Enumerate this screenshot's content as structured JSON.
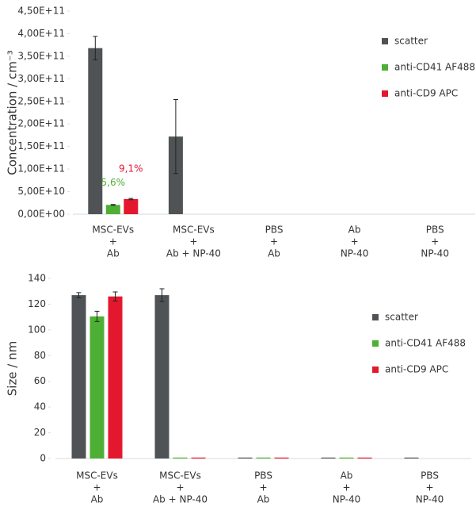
{
  "chart_data": [
    {
      "type": "bar",
      "y_label": "Concentration / cm⁻³",
      "categories": [
        [
          "MSC-EVs",
          "+",
          "Ab"
        ],
        [
          "MSC-EVs",
          "+",
          "Ab + NP-40"
        ],
        [
          "PBS",
          "+",
          "Ab"
        ],
        [
          "Ab",
          "+",
          "NP-40"
        ],
        [
          "PBS",
          "+",
          "NP-40"
        ]
      ],
      "series": [
        {
          "name": "scatter",
          "color": "#505356",
          "values": [
            368000000000,
            172000000000,
            null,
            null,
            null
          ],
          "errors": [
            26000000000,
            82000000000,
            null,
            null,
            null
          ]
        },
        {
          "name": "anti-CD41 AF488",
          "color": "#4db034",
          "values": [
            20600000000,
            null,
            null,
            null,
            null
          ],
          "errors": [
            1000000000,
            null,
            null,
            null,
            null
          ],
          "annotations": [
            "5,6%",
            null,
            null,
            null,
            null
          ]
        },
        {
          "name": "anti-CD9 APC",
          "color": "#e3172e",
          "values": [
            33500000000,
            null,
            null,
            null,
            null
          ],
          "errors": [
            1500000000,
            null,
            null,
            null,
            null
          ],
          "annotations": [
            "9,1%",
            null,
            null,
            null,
            null
          ]
        }
      ],
      "ylim": [
        0,
        450000000000
      ],
      "yticks": [
        {
          "value": 0,
          "label": "0,00E+00"
        },
        {
          "value": 50000000000,
          "label": "5,00E+10"
        },
        {
          "value": 100000000000,
          "label": "1,00E+11"
        },
        {
          "value": 150000000000,
          "label": "1,50E+11"
        },
        {
          "value": 200000000000,
          "label": "2,00E+11"
        },
        {
          "value": 250000000000,
          "label": "2,50E+11"
        },
        {
          "value": 300000000000,
          "label": "3,00E+11"
        },
        {
          "value": 350000000000,
          "label": "3,50E+11"
        },
        {
          "value": 400000000000,
          "label": "4,00E+11"
        },
        {
          "value": 450000000000,
          "label": "4,50E+11"
        }
      ],
      "legend": "upper right"
    },
    {
      "type": "bar",
      "y_label": "Size / nm",
      "categories": [
        [
          "MSC-EVs",
          "+",
          "Ab"
        ],
        [
          "MSC-EVs",
          "+",
          "Ab + NP-40"
        ],
        [
          "PBS",
          "+",
          "Ab"
        ],
        [
          "Ab",
          "+",
          "NP-40"
        ],
        [
          "PBS",
          "+",
          "NP-40"
        ]
      ],
      "series": [
        {
          "name": "scatter",
          "color": "#505356",
          "values": [
            127,
            127,
            0,
            0,
            0
          ],
          "errors": [
            2,
            5,
            null,
            null,
            null
          ]
        },
        {
          "name": "anti-CD41 AF488",
          "color": "#4db034",
          "values": [
            110.5,
            0,
            0,
            0,
            null
          ],
          "errors": [
            4,
            null,
            null,
            null,
            null
          ]
        },
        {
          "name": "anti-CD9 APC",
          "color": "#e3172e",
          "values": [
            126,
            0,
            0,
            0,
            null
          ],
          "errors": [
            3.5,
            null,
            null,
            null,
            null
          ]
        }
      ],
      "ylim": [
        0,
        140
      ],
      "yticks": [
        0,
        20,
        40,
        60,
        80,
        100,
        120,
        140
      ],
      "legend": "upper right"
    }
  ]
}
